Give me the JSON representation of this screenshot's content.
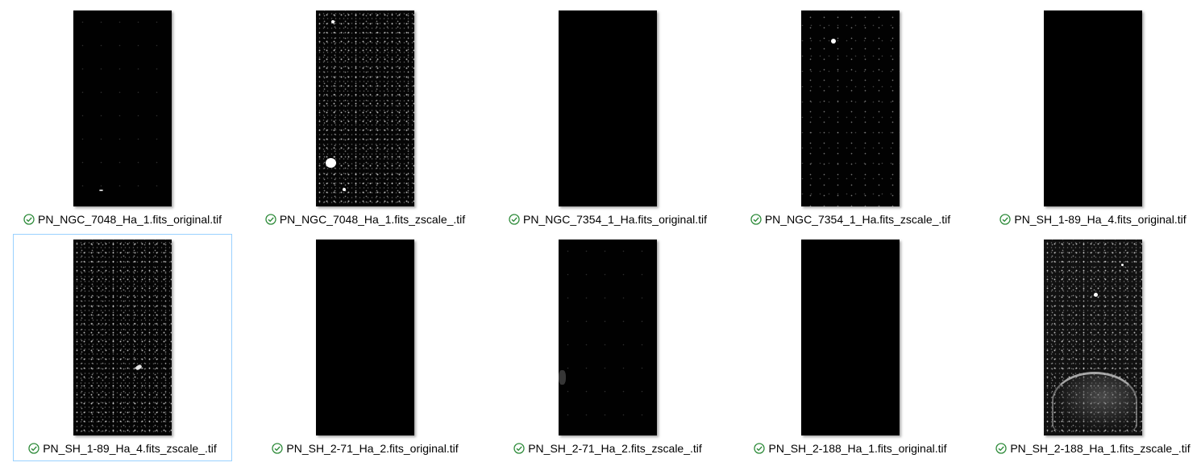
{
  "files": [
    {
      "name": "PN_NGC_7048_Ha_1.fits_original.tif",
      "status_icon": "sync-ok-check-icon",
      "thumb": "dark-sparse",
      "selected": false
    },
    {
      "name": "PN_NGC_7048_Ha_1.fits_zscale_.tif",
      "status_icon": "sync-ok-check-icon",
      "thumb": "starfield-bright",
      "selected": false
    },
    {
      "name": "PN_NGC_7354_1_Ha.fits_original.tif",
      "status_icon": "sync-ok-check-icon",
      "thumb": "dark",
      "selected": false
    },
    {
      "name": "PN_NGC_7354_1_Ha.fits_zscale_.tif",
      "status_icon": "sync-ok-check-icon",
      "thumb": "starfield-sparse",
      "selected": false
    },
    {
      "name": "PN_SH_1-89_Ha_4.fits_original.tif",
      "status_icon": "sync-ok-check-icon",
      "thumb": "dark",
      "selected": false
    },
    {
      "name": "PN_SH_1-89_Ha_4.fits_zscale_.tif",
      "status_icon": "sync-ok-check-icon",
      "thumb": "starfield-nebula-small",
      "selected": true
    },
    {
      "name": "PN_SH_2-71_Ha_2.fits_original.tif",
      "status_icon": "sync-ok-check-icon",
      "thumb": "dark",
      "selected": false
    },
    {
      "name": "PN_SH_2-71_Ha_2.fits_zscale_.tif",
      "status_icon": "sync-ok-check-icon",
      "thumb": "dark-faint-nebula",
      "selected": false
    },
    {
      "name": "PN_SH_2-188_Ha_1.fits_original.tif",
      "status_icon": "sync-ok-check-icon",
      "thumb": "dark",
      "selected": false
    },
    {
      "name": "PN_SH_2-188_Ha_1.fits_zscale_.tif",
      "status_icon": "sync-ok-check-icon",
      "thumb": "starfield-nebula-large",
      "selected": false
    }
  ],
  "colors": {
    "check": "#2e8b3a",
    "selection_border": "#99d1ff"
  }
}
